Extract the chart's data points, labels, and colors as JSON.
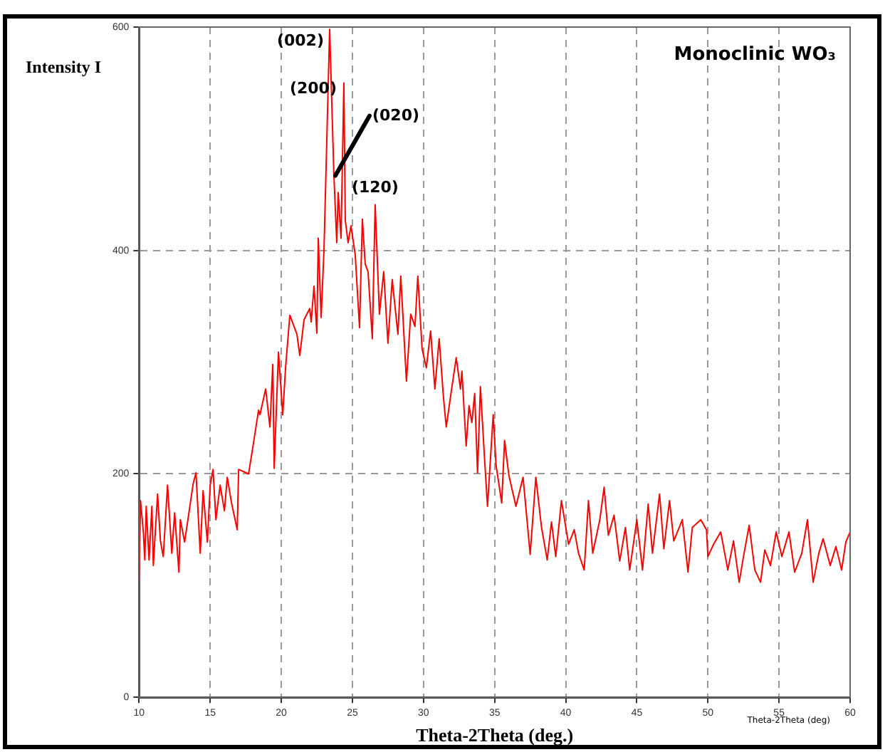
{
  "chart_data": {
    "type": "line",
    "xlabel": "Theta-2Theta (deg.)",
    "ylabel": "Intensity I",
    "annotations": [
      {
        "text": "(002)",
        "x": 23.4,
        "y": 598
      },
      {
        "text": "(200)",
        "x": 24.4,
        "y": 550
      },
      {
        "text": "(020)",
        "x": 23.8,
        "y": 467
      },
      {
        "text": "(120)",
        "x": 26.6,
        "y": 441
      },
      "Monoclinic WO₃",
      "Theta-2Theta (deg)"
    ],
    "xlim": [
      10,
      60
    ],
    "xticks": [
      10,
      15,
      20,
      25,
      30,
      35,
      40,
      45,
      50,
      55,
      60
    ],
    "ylim": [
      0,
      600
    ],
    "yticks": [
      0,
      200,
      400,
      600
    ],
    "grid": true,
    "legend": false,
    "marker": "none",
    "line_style": "solid",
    "series": [
      {
        "color": "#ff0000",
        "x": [
          10.0,
          10.1,
          10.3,
          10.4,
          10.5,
          10.7,
          10.9,
          11.0,
          11.3,
          11.5,
          11.7,
          12.0,
          12.3,
          12.5,
          12.8,
          12.9,
          13.2,
          13.4,
          13.8,
          14.0,
          14.3,
          14.5,
          14.8,
          15.0,
          15.2,
          15.4,
          15.7,
          16.0,
          16.2,
          16.5,
          16.9,
          17.0,
          17.7,
          18.0,
          18.4,
          18.5,
          18.9,
          19.2,
          19.4,
          19.5,
          19.8,
          20.1,
          20.3,
          20.6,
          21.1,
          21.3,
          21.6,
          22.0,
          22.1,
          22.3,
          22.5,
          22.6,
          22.8,
          23.0,
          23.4,
          23.7,
          23.9,
          24.0,
          24.2,
          24.4,
          24.5,
          24.7,
          24.9,
          25.2,
          25.5,
          25.7,
          25.9,
          26.1,
          26.4,
          26.6,
          26.9,
          27.2,
          27.5,
          27.8,
          28.2,
          28.4,
          28.8,
          29.1,
          29.4,
          29.6,
          29.9,
          30.2,
          30.5,
          30.8,
          31.1,
          31.4,
          31.6,
          31.9,
          32.3,
          32.6,
          32.7,
          33.0,
          33.2,
          33.4,
          33.6,
          33.8,
          34.0,
          34.3,
          34.5,
          34.9,
          35.1,
          35.5,
          35.7,
          36.0,
          36.5,
          37.0,
          37.5,
          37.9,
          38.3,
          38.7,
          39.0,
          39.3,
          39.7,
          40.2,
          40.6,
          40.9,
          41.3,
          41.6,
          41.9,
          42.4,
          42.7,
          43.0,
          43.4,
          43.8,
          44.2,
          44.5,
          45.0,
          45.4,
          45.8,
          46.1,
          46.6,
          46.9,
          47.3,
          47.6,
          48.2,
          48.6,
          48.9,
          49.5,
          49.9,
          50.0,
          50.4,
          50.9,
          51.4,
          51.8,
          52.2,
          52.5,
          52.9,
          53.3,
          53.7,
          54.0,
          54.4,
          54.8,
          55.2,
          55.7,
          56.1,
          56.6,
          57.0,
          57.4,
          57.8,
          58.1,
          58.6,
          59.0,
          59.4,
          59.7,
          60.0
        ],
        "values": [
          104,
          176,
          148,
          123,
          171,
          123,
          171,
          118,
          182,
          140,
          126,
          190,
          129,
          165,
          112,
          159,
          139,
          156,
          191,
          201,
          129,
          185,
          139,
          190,
          204,
          159,
          190,
          167,
          197,
          174,
          150,
          204,
          200,
          224,
          257,
          253,
          276,
          242,
          298,
          205,
          309,
          253,
          295,
          342,
          325,
          306,
          338,
          348,
          336,
          368,
          326,
          411,
          340,
          400,
          598,
          467,
          407,
          452,
          411,
          550,
          427,
          407,
          422,
          396,
          331,
          428,
          388,
          381,
          321,
          441,
          343,
          381,
          317,
          374,
          325,
          377,
          283,
          343,
          332,
          377,
          312,
          295,
          328,
          276,
          321,
          269,
          242,
          269,
          304,
          276,
          292,
          225,
          261,
          246,
          272,
          201,
          278,
          212,
          171,
          253,
          208,
          174,
          230,
          199,
          171,
          197,
          128,
          197,
          152,
          123,
          157,
          126,
          176,
          137,
          150,
          129,
          114,
          176,
          129,
          159,
          188,
          145,
          163,
          122,
          152,
          114,
          159,
          114,
          173,
          129,
          182,
          133,
          176,
          140,
          159,
          112,
          152,
          159,
          150,
          126,
          137,
          148,
          114,
          140,
          103,
          126,
          154,
          114,
          103,
          132,
          118,
          148,
          126,
          148,
          112,
          129,
          159,
          103,
          129,
          142,
          118,
          135,
          114,
          139,
          148
        ]
      }
    ]
  }
}
